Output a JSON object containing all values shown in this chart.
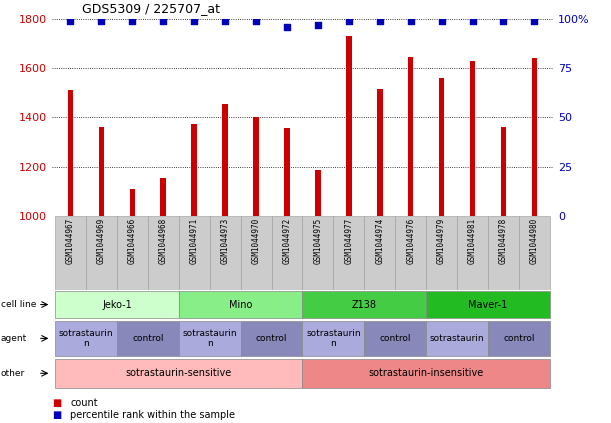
{
  "title": "GDS5309 / 225707_at",
  "samples": [
    "GSM1044967",
    "GSM1044969",
    "GSM1044966",
    "GSM1044968",
    "GSM1044971",
    "GSM1044973",
    "GSM1044970",
    "GSM1044972",
    "GSM1044975",
    "GSM1044977",
    "GSM1044974",
    "GSM1044976",
    "GSM1044979",
    "GSM1044981",
    "GSM1044978",
    "GSM1044980"
  ],
  "counts": [
    1510,
    1360,
    1110,
    1155,
    1375,
    1455,
    1400,
    1355,
    1185,
    1730,
    1515,
    1645,
    1560,
    1630,
    1360,
    1640
  ],
  "percentiles": [
    99,
    99,
    99,
    99,
    99,
    99,
    99,
    96,
    97,
    99,
    99,
    99,
    99,
    99,
    99,
    99
  ],
  "ylim_left": [
    1000,
    1800
  ],
  "ylim_right": [
    0,
    100
  ],
  "yticks_left": [
    1000,
    1200,
    1400,
    1600,
    1800
  ],
  "yticks_right": [
    0,
    25,
    50,
    75,
    100
  ],
  "bar_color": "#cc0000",
  "dot_color": "#0000bb",
  "grid_color": "#555555",
  "cell_line_groups": [
    {
      "label": "Jeko-1",
      "start": 0,
      "end": 4,
      "color": "#ccffcc"
    },
    {
      "label": "Mino",
      "start": 4,
      "end": 8,
      "color": "#88ee88"
    },
    {
      "label": "Z138",
      "start": 8,
      "end": 12,
      "color": "#44cc44"
    },
    {
      "label": "Maver-1",
      "start": 12,
      "end": 16,
      "color": "#22bb22"
    }
  ],
  "agent_groups": [
    {
      "label": "sotrastaurin\nn",
      "start": 0,
      "end": 2,
      "color": "#aaaadd"
    },
    {
      "label": "control",
      "start": 2,
      "end": 4,
      "color": "#8888bb"
    },
    {
      "label": "sotrastaurin\nn",
      "start": 4,
      "end": 6,
      "color": "#aaaadd"
    },
    {
      "label": "control",
      "start": 6,
      "end": 8,
      "color": "#8888bb"
    },
    {
      "label": "sotrastaurin\nn",
      "start": 8,
      "end": 10,
      "color": "#aaaadd"
    },
    {
      "label": "control",
      "start": 10,
      "end": 12,
      "color": "#8888bb"
    },
    {
      "label": "sotrastaurin",
      "start": 12,
      "end": 14,
      "color": "#aaaadd"
    },
    {
      "label": "control",
      "start": 14,
      "end": 16,
      "color": "#8888bb"
    }
  ],
  "other_groups": [
    {
      "label": "sotrastaurin-sensitive",
      "start": 0,
      "end": 8,
      "color": "#ffbbbb"
    },
    {
      "label": "sotrastaurin-insensitive",
      "start": 8,
      "end": 16,
      "color": "#ee8888"
    }
  ],
  "row_labels": [
    "cell line",
    "agent",
    "other"
  ],
  "legend_items": [
    {
      "label": "count",
      "color": "#cc0000"
    },
    {
      "label": "percentile rank within the sample",
      "color": "#0000bb"
    }
  ],
  "background_color": "#ffffff",
  "tick_label_color_left": "#cc0000",
  "tick_label_color_right": "#0000bb",
  "xticklabel_bg": "#cccccc",
  "spine_color": "#aaaaaa"
}
